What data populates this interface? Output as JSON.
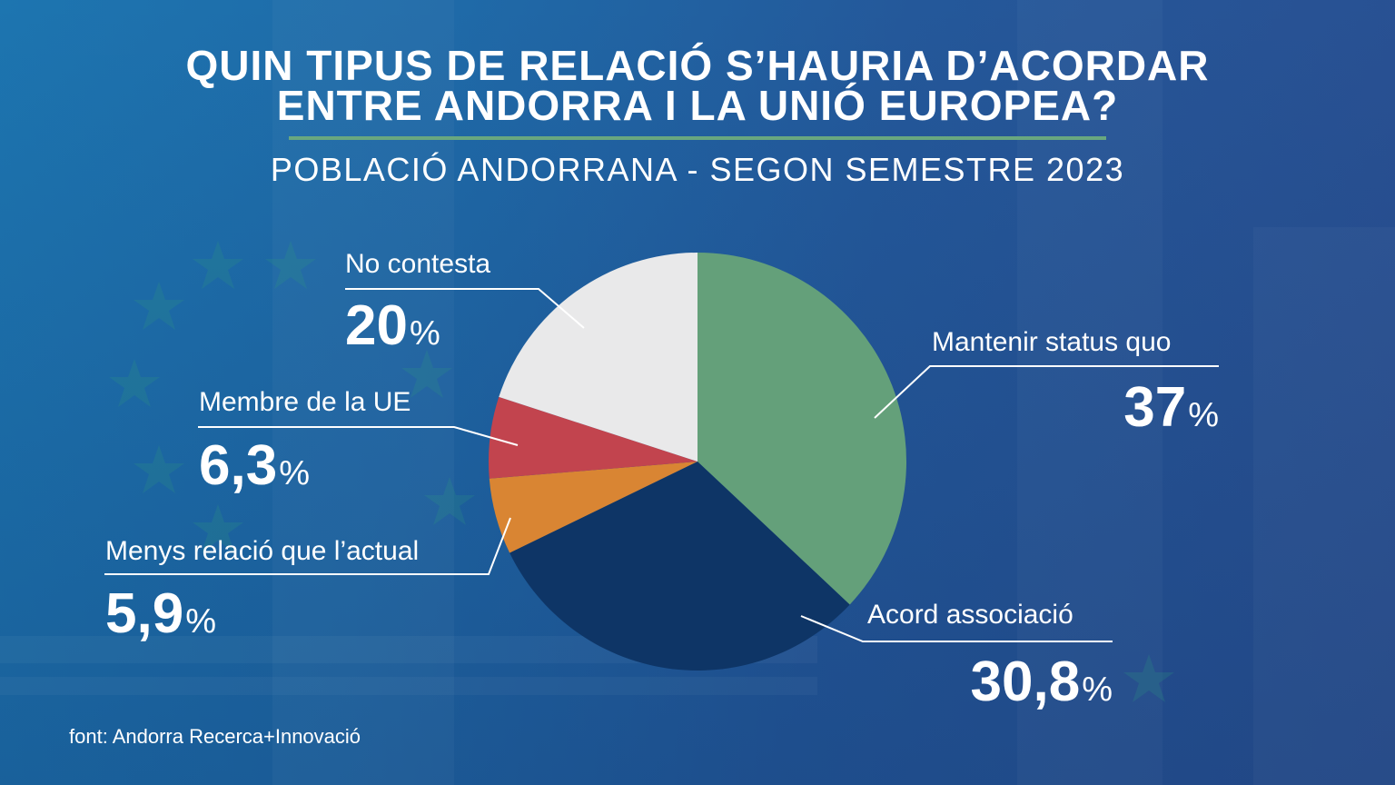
{
  "title_line1": "QUIN TIPUS DE RELACIÓ S’HAURIA D’ACORDAR",
  "title_line2": "ENTRE ANDORRA I LA UNIÓ EUROPEA?",
  "subtitle": "POBLACIÓ ANDORRANA - SEGON SEMESTRE 2023",
  "source": "font: Andorra Recerca+Innovació",
  "chart_data": {
    "type": "pie",
    "title": "QUIN TIPUS DE RELACIÓ S’HAURIA D’ACORDAR ENTRE ANDORRA I LA UNIÓ EUROPEA?",
    "subtitle": "POBLACIÓ ANDORRANA - SEGON SEMESTRE 2023",
    "unit": "%",
    "start_angle_deg": 0,
    "direction": "clockwise",
    "slices": [
      {
        "label": "Mantenir status quo",
        "value": 37,
        "value_text": "37",
        "color": "#64a07a"
      },
      {
        "label": "Acord associació",
        "value": 30.8,
        "value_text": "30,8",
        "color": "#0e3566"
      },
      {
        "label": "Menys relació que l’actual",
        "value": 5.9,
        "value_text": "5,9",
        "color": "#d98533"
      },
      {
        "label": "Membre de la UE",
        "value": 6.3,
        "value_text": "6,3",
        "color": "#c2444e"
      },
      {
        "label": "No contesta",
        "value": 20,
        "value_text": "20",
        "color": "#e9e9ea"
      }
    ]
  }
}
